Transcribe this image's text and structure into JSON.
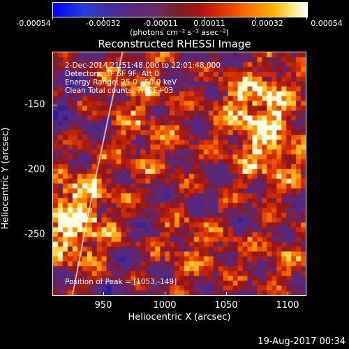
{
  "colorbar": {
    "ticks": [
      "-0.00054",
      "-0.00032",
      "-0.00011",
      "0.00011",
      "0.00032",
      "0.00054"
    ],
    "units": "(photons cm⁻² s⁻¹ asec⁻²)"
  },
  "title": "Reconstructed RHESSI Image",
  "info": {
    "time": "2-Dec-2014 21:51:48.000 to 22:01:48.000",
    "detectors": "Detectors: 3F 6F 9F, Att 0",
    "energy": "Energy Range: 25.0 - 50.0 keV",
    "method": "Clean    Total counts: 7.32E+03",
    "peak": "Position of Peak = [1053,-149]"
  },
  "axes": {
    "x_label": "Heliocentric X (arcsec)",
    "y_label": "Heliocentric Y (arcsec)",
    "x_ticks": [
      "950",
      "1000",
      "1050",
      "1100"
    ],
    "y_ticks": [
      "-150",
      "-200",
      "-250"
    ]
  },
  "footer": {
    "timestamp": "19-Aug-2017 00:34"
  },
  "colors": {
    "background": "#000000",
    "foreground": "#ffffff",
    "limb_line": "#ffffff"
  }
}
